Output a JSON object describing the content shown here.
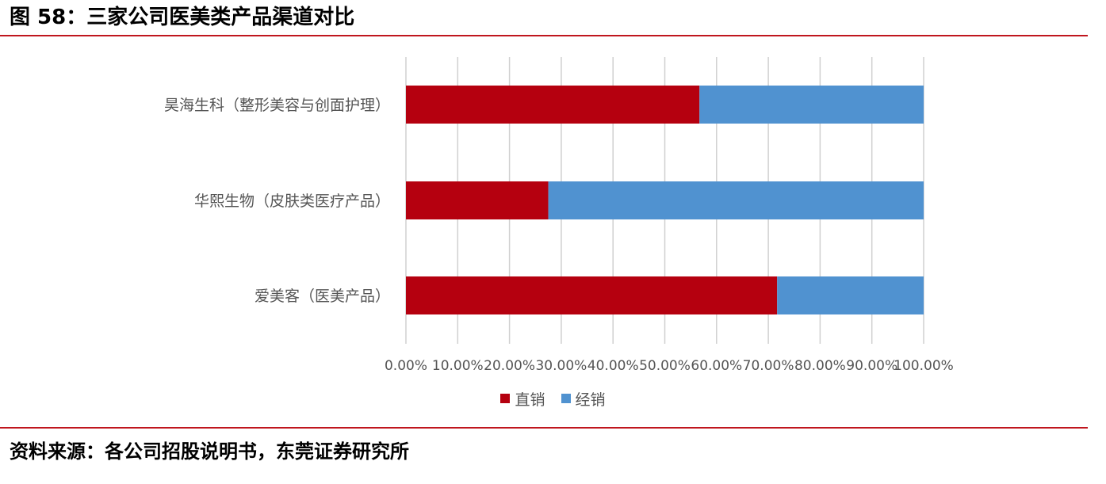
{
  "figure": {
    "title": "图 58：三家公司医美类产品渠道对比",
    "source": "资料来源：各公司招股说明书，东莞证券研究所"
  },
  "colors": {
    "accent_rule": "#c0161e",
    "direct": "#b5000f",
    "distribution": "#5092d0",
    "grid": "#d0d0d0",
    "tick_text": "#555555"
  },
  "chart_data": {
    "type": "bar",
    "orientation": "horizontal",
    "stacked": true,
    "categories": [
      "昊海生科（整形美容与创面护理）",
      "华熙生物（皮肤类医疗产品）",
      "爱美客（医美产品）"
    ],
    "series": [
      {
        "name": "直销",
        "values": [
          56.7,
          27.5,
          71.7
        ]
      },
      {
        "name": "经销",
        "values": [
          43.3,
          72.5,
          28.3
        ]
      }
    ],
    "xlim": [
      0,
      100
    ],
    "x_ticks": [
      "0.00%",
      "10.00%",
      "20.00%",
      "30.00%",
      "40.00%",
      "50.00%",
      "60.00%",
      "70.00%",
      "80.00%",
      "90.00%",
      "100.00%"
    ],
    "grid": "vertical",
    "legend_position": "bottom"
  }
}
